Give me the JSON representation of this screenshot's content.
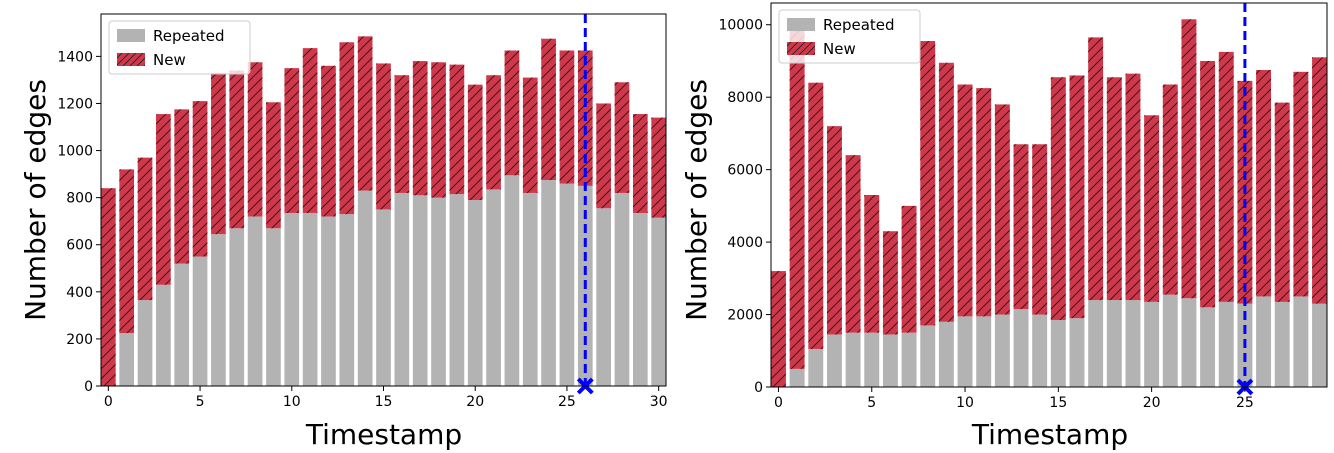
{
  "chart_data": [
    {
      "type": "bar",
      "stacked": true,
      "xlabel": "Timestamp",
      "ylabel": "Number of edges",
      "xlim": [
        -0.4,
        30.4
      ],
      "ylim": [
        0,
        1580
      ],
      "xticks": [
        0,
        5,
        10,
        15,
        20,
        25,
        30
      ],
      "yticks": [
        0,
        200,
        400,
        600,
        800,
        1000,
        1200,
        1400
      ],
      "legend_position": "top-left",
      "categories": [
        0,
        1,
        2,
        3,
        4,
        5,
        6,
        7,
        8,
        9,
        10,
        11,
        12,
        13,
        14,
        15,
        16,
        17,
        18,
        19,
        20,
        21,
        22,
        23,
        24,
        25,
        26,
        27,
        28,
        29,
        30
      ],
      "series": [
        {
          "name": "Repeated",
          "color": "#b3b3b3",
          "values": [
            0,
            225,
            365,
            430,
            520,
            550,
            645,
            670,
            720,
            670,
            735,
            735,
            720,
            730,
            830,
            750,
            820,
            810,
            800,
            815,
            790,
            835,
            895,
            820,
            875,
            860,
            850,
            755,
            820,
            735,
            715
          ]
        },
        {
          "name": "New",
          "color": "#d1374a",
          "hatch": "diagonal",
          "values": [
            840,
            695,
            605,
            725,
            655,
            660,
            685,
            670,
            655,
            535,
            615,
            700,
            640,
            730,
            655,
            620,
            500,
            570,
            575,
            550,
            490,
            485,
            530,
            490,
            600,
            565,
            575,
            445,
            470,
            420,
            425
          ]
        }
      ],
      "marker": {
        "x": 26,
        "y": 0,
        "line": "dashed-vertical",
        "color": "#0000ff"
      }
    },
    {
      "type": "bar",
      "stacked": true,
      "xlabel": "Timestamp",
      "ylabel": "Number of edges",
      "xlim": [
        -0.4,
        29.4
      ],
      "ylim": [
        0,
        10600
      ],
      "xticks": [
        0,
        5,
        10,
        15,
        20,
        25
      ],
      "yticks": [
        0,
        2000,
        4000,
        6000,
        8000,
        10000
      ],
      "legend_position": "top-left",
      "categories": [
        0,
        1,
        2,
        3,
        4,
        5,
        6,
        7,
        8,
        9,
        10,
        11,
        12,
        13,
        14,
        15,
        16,
        17,
        18,
        19,
        20,
        21,
        22,
        23,
        24,
        25,
        26,
        27,
        28,
        29
      ],
      "series": [
        {
          "name": "Repeated",
          "color": "#b3b3b3",
          "values": [
            0,
            500,
            1050,
            1450,
            1500,
            1500,
            1450,
            1500,
            1700,
            1800,
            1950,
            1950,
            2000,
            2150,
            2000,
            1850,
            1900,
            2400,
            2400,
            2400,
            2350,
            2550,
            2450,
            2200,
            2350,
            2300,
            2500,
            2350,
            2500,
            2300
          ]
        },
        {
          "name": "New",
          "color": "#d1374a",
          "hatch": "diagonal",
          "values": [
            3200,
            9550,
            7350,
            5750,
            4900,
            3800,
            2850,
            3500,
            7850,
            7150,
            6400,
            6300,
            5800,
            4550,
            4700,
            6700,
            6700,
            7250,
            6150,
            6250,
            5150,
            5800,
            7700,
            6800,
            6900,
            6150,
            6250,
            5500,
            6200,
            6800
          ]
        }
      ],
      "marker": {
        "x": 25,
        "y": 0,
        "line": "dashed-vertical",
        "color": "#0000ff"
      }
    }
  ]
}
